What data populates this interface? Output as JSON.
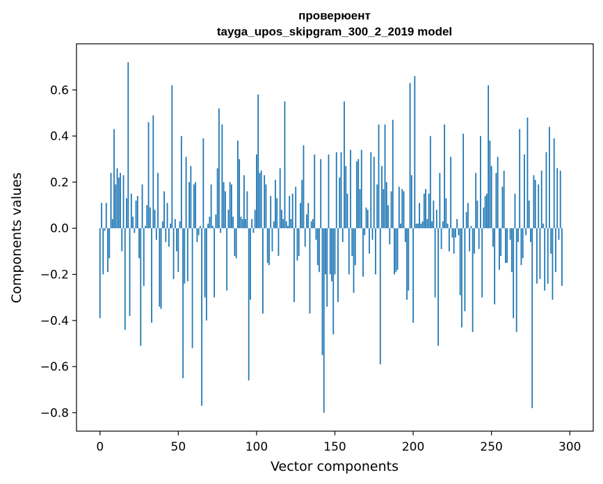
{
  "chart_data": {
    "type": "bar",
    "title_line1": "проверюент",
    "title_line2": "tayga_upos_skipgram_300_2_2019 model",
    "xlabel": "Vector components",
    "ylabel": "Components values",
    "xlim": [
      -15,
      315
    ],
    "ylim": [
      -0.88,
      0.8
    ],
    "xticks": [
      0,
      50,
      100,
      150,
      200,
      250,
      300
    ],
    "xtick_labels": [
      "0",
      "50",
      "100",
      "150",
      "200",
      "250",
      "300"
    ],
    "yticks": [
      -0.8,
      -0.6,
      -0.4,
      -0.2,
      0.0,
      0.2,
      0.4,
      0.6
    ],
    "ytick_labels": [
      "−0.8",
      "−0.6",
      "−0.4",
      "−0.2",
      "0.0",
      "0.2",
      "0.4",
      "0.6"
    ],
    "grid": false,
    "bar_color": "#1f77b4",
    "values": [
      -0.39,
      0.11,
      -0.2,
      -0.01,
      0.11,
      -0.19,
      -0.13,
      0.24,
      0.04,
      0.43,
      0.19,
      0.26,
      0.22,
      0.24,
      -0.1,
      0.23,
      -0.44,
      0.13,
      0.72,
      -0.38,
      0.15,
      0.05,
      -0.02,
      0.12,
      0.14,
      -0.13,
      -0.51,
      0.19,
      -0.25,
      0.01,
      0.1,
      0.46,
      0.09,
      -0.41,
      0.49,
      0.08,
      -0.05,
      0.24,
      -0.34,
      -0.35,
      0.03,
      0.16,
      -0.06,
      0.11,
      -0.08,
      0.02,
      0.62,
      -0.22,
      0.04,
      -0.1,
      -0.19,
      0.03,
      0.4,
      -0.65,
      -0.24,
      0.31,
      -0.23,
      0.2,
      0.27,
      -0.52,
      0.19,
      0.2,
      -0.06,
      -0.03,
      0.01,
      -0.77,
      0.39,
      -0.3,
      -0.4,
      0.02,
      0.05,
      0.19,
      0.01,
      -0.3,
      0.06,
      0.26,
      0.52,
      -0.02,
      0.45,
      0.2,
      0.16,
      -0.27,
      0.08,
      0.2,
      0.19,
      0.05,
      -0.12,
      -0.13,
      0.38,
      0.3,
      0.05,
      0.04,
      0.23,
      0.04,
      0.16,
      -0.66,
      -0.31,
      0.04,
      -0.02,
      0.08,
      0.32,
      0.58,
      0.24,
      0.25,
      -0.37,
      0.23,
      0.19,
      -0.15,
      -0.16,
      0.14,
      -0.1,
      0.03,
      0.21,
      0.13,
      -0.12,
      0.26,
      0.08,
      0.04,
      0.55,
      0.03,
      0.01,
      0.14,
      0.04,
      0.15,
      -0.32,
      0.18,
      -0.14,
      -0.12,
      0.11,
      0.21,
      0.36,
      -0.08,
      0.06,
      0.11,
      -0.37,
      0.03,
      0.04,
      0.32,
      -0.05,
      -0.16,
      -0.19,
      0.3,
      -0.55,
      -0.8,
      -0.2,
      -0.34,
      0.32,
      -0.2,
      -0.23,
      -0.46,
      -0.2,
      0.33,
      -0.32,
      0.22,
      0.33,
      -0.06,
      0.55,
      0.27,
      0.15,
      -0.2,
      0.34,
      -0.12,
      -0.28,
      -0.16,
      0.29,
      0.3,
      0.17,
      0.34,
      -0.21,
      -0.03,
      0.09,
      0.08,
      -0.11,
      0.33,
      -0.05,
      0.31,
      -0.2,
      0.19,
      0.45,
      -0.59,
      0.27,
      0.17,
      0.45,
      0.2,
      0.1,
      -0.07,
      0.16,
      0.47,
      -0.2,
      -0.19,
      -0.18,
      0.18,
      0.02,
      0.17,
      0.16,
      -0.06,
      -0.31,
      -0.27,
      0.63,
      0.23,
      -0.41,
      0.66,
      0.02,
      0.02,
      0.11,
      0.02,
      0.03,
      0.15,
      0.17,
      0.04,
      0.15,
      0.4,
      0.03,
      0.12,
      -0.3,
      0.08,
      -0.51,
      0.24,
      -0.09,
      0.03,
      0.45,
      0.13,
      0.02,
      -0.1,
      0.31,
      -0.04,
      -0.11,
      -0.04,
      0.04,
      -0.03,
      -0.29,
      -0.43,
      0.41,
      -0.36,
      0.07,
      0.11,
      -0.1,
      0.01,
      -0.45,
      -0.11,
      0.24,
      0.12,
      -0.09,
      0.4,
      -0.3,
      0.09,
      0.14,
      0.15,
      0.62,
      0.38,
      0.27,
      -0.08,
      -0.33,
      0.24,
      0.31,
      -0.18,
      -0.12,
      0.18,
      0.25,
      -0.15,
      -0.15,
      0.0,
      -0.05,
      -0.19,
      -0.39,
      0.15,
      -0.45,
      -0.06,
      0.43,
      -0.16,
      -0.13,
      0.32,
      -0.03,
      0.48,
      0.12,
      -0.06,
      -0.78,
      0.23,
      0.21,
      -0.24,
      0.19,
      -0.22,
      0.25,
      0.02,
      -0.27,
      0.33,
      -0.24,
      0.44,
      -0.11,
      -0.31,
      0.39,
      -0.19,
      0.26,
      -0.05,
      0.25,
      -0.25
    ]
  }
}
